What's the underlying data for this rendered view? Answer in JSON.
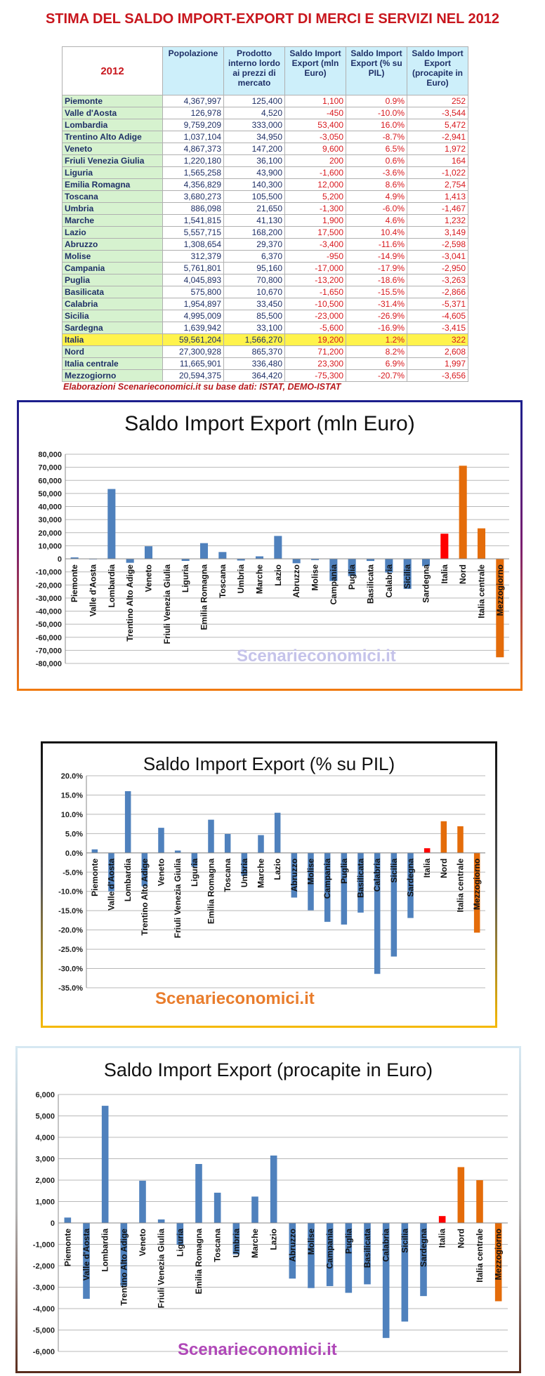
{
  "page": {
    "title": "STIMA DEL SALDO IMPORT-EXPORT DI MERCI E SERVIZI NEL 2012",
    "source_note": "Elaborazioni Scenarieconomici.it su base dati: ISTAT, DEMO-ISTAT"
  },
  "table": {
    "year_label": "2012",
    "headers": [
      "Popolazione",
      "Prodotto interno lordo ai prezzi di mercato",
      "Saldo Import Export (mln Euro)",
      "Saldo Import Export (% su PIL)",
      "Saldo Import Export (procapite in Euro)"
    ],
    "rows": [
      [
        "Piemonte",
        "4,367,997",
        "125,400",
        "1,100",
        "0.9%",
        "252"
      ],
      [
        "Valle d'Aosta",
        "126,978",
        "4,520",
        "-450",
        "-10.0%",
        "-3,544"
      ],
      [
        "Lombardia",
        "9,759,209",
        "333,000",
        "53,400",
        "16.0%",
        "5,472"
      ],
      [
        "Trentino Alto Adige",
        "1,037,104",
        "34,950",
        "-3,050",
        "-8.7%",
        "-2,941"
      ],
      [
        "Veneto",
        "4,867,373",
        "147,200",
        "9,600",
        "6.5%",
        "1,972"
      ],
      [
        "Friuli Venezia Giulia",
        "1,220,180",
        "36,100",
        "200",
        "0.6%",
        "164"
      ],
      [
        "Liguria",
        "1,565,258",
        "43,900",
        "-1,600",
        "-3.6%",
        "-1,022"
      ],
      [
        "Emilia Romagna",
        "4,356,829",
        "140,300",
        "12,000",
        "8.6%",
        "2,754"
      ],
      [
        "Toscana",
        "3,680,273",
        "105,500",
        "5,200",
        "4.9%",
        "1,413"
      ],
      [
        "Umbria",
        "886,098",
        "21,650",
        "-1,300",
        "-6.0%",
        "-1,467"
      ],
      [
        "Marche",
        "1,541,815",
        "41,130",
        "1,900",
        "4.6%",
        "1,232"
      ],
      [
        "Lazio",
        "5,557,715",
        "168,200",
        "17,500",
        "10.4%",
        "3,149"
      ],
      [
        "Abruzzo",
        "1,308,654",
        "29,370",
        "-3,400",
        "-11.6%",
        "-2,598"
      ],
      [
        "Molise",
        "312,379",
        "6,370",
        "-950",
        "-14.9%",
        "-3,041"
      ],
      [
        "Campania",
        "5,761,801",
        "95,160",
        "-17,000",
        "-17.9%",
        "-2,950"
      ],
      [
        "Puglia",
        "4,045,893",
        "70,800",
        "-13,200",
        "-18.6%",
        "-3,263"
      ],
      [
        "Basilicata",
        "575,800",
        "10,670",
        "-1,650",
        "-15.5%",
        "-2,866"
      ],
      [
        "Calabria",
        "1,954,897",
        "33,450",
        "-10,500",
        "-31.4%",
        "-5,371"
      ],
      [
        "Sicilia",
        "4,995,009",
        "85,500",
        "-23,000",
        "-26.9%",
        "-4,605"
      ],
      [
        "Sardegna",
        "1,639,942",
        "33,100",
        "-5,600",
        "-16.9%",
        "-3,415"
      ],
      [
        "Italia",
        "59,561,204",
        "1,566,270",
        "19,200",
        "1.2%",
        "322"
      ],
      [
        "Nord",
        "27,300,928",
        "865,370",
        "71,200",
        "8.2%",
        "2,608"
      ],
      [
        "Italia centrale",
        "11,665,901",
        "336,480",
        "23,300",
        "6.9%",
        "1,997"
      ],
      [
        "Mezzogiorno",
        "20,594,375",
        "364,420",
        "-75,300",
        "-20.7%",
        "-3,656"
      ]
    ]
  },
  "chart_data": [
    {
      "type": "bar",
      "title": "Saldo Import Export (mln Euro)",
      "watermark": "Scenarieconomici.it",
      "categories": [
        "Piemonte",
        "Valle d'Aosta",
        "Lombardia",
        "Trentino Alto Adige",
        "Veneto",
        "Friuli Venezia Giulia",
        "Liguria",
        "Emilia Romagna",
        "Toscana",
        "Umbria",
        "Marche",
        "Lazio",
        "Abruzzo",
        "Molise",
        "Campania",
        "Puglia",
        "Basilicata",
        "Calabria",
        "Sicilia",
        "Sardegna",
        "Italia",
        "Nord",
        "Italia centrale",
        "Mezzogiorno"
      ],
      "values": [
        1100,
        -450,
        53400,
        -3050,
        9600,
        200,
        -1600,
        12000,
        5200,
        -1300,
        1900,
        17500,
        -3400,
        -950,
        -17000,
        -13200,
        -1650,
        -10500,
        -23000,
        -5600,
        19200,
        71200,
        23300,
        -75300
      ],
      "ylim": [
        -80000,
        80000
      ],
      "yticks": [
        80000,
        70000,
        60000,
        50000,
        40000,
        30000,
        20000,
        10000,
        0,
        -10000,
        -20000,
        -30000,
        -40000,
        -50000,
        -60000,
        -70000,
        -80000
      ],
      "ytick_labels": [
        "80,000",
        "70,000",
        "60,000",
        "50,000",
        "40,000",
        "30,000",
        "20,000",
        "10,000",
        "0",
        "-10,000",
        "-20,000",
        "-30,000",
        "-40,000",
        "-50,000",
        "-60,000",
        "-70,000",
        "-80,000"
      ],
      "grid": true,
      "colors": {
        "regions": "#4f81bd",
        "italia": "#ff0000",
        "macro": "#e46c0a"
      }
    },
    {
      "type": "bar",
      "title": "Saldo Import Export (% su PIL)",
      "watermark": "Scenarieconomici.it",
      "categories": [
        "Piemonte",
        "Valle d'Aosta",
        "Lombardia",
        "Trentino Alto Adige",
        "Veneto",
        "Friuli Venezia Giulia",
        "Liguria",
        "Emilia Romagna",
        "Toscana",
        "Umbria",
        "Marche",
        "Lazio",
        "Abruzzo",
        "Molise",
        "Campania",
        "Puglia",
        "Basilicata",
        "Calabria",
        "Sicilia",
        "Sardegna",
        "Italia",
        "Nord",
        "Italia centrale",
        "Mezzogiorno"
      ],
      "values": [
        0.9,
        -10.0,
        16.0,
        -8.7,
        6.5,
        0.6,
        -3.6,
        8.6,
        4.9,
        -6.0,
        4.6,
        10.4,
        -11.6,
        -14.9,
        -17.9,
        -18.6,
        -15.5,
        -31.4,
        -26.9,
        -16.9,
        1.2,
        8.2,
        6.9,
        -20.7
      ],
      "ylim": [
        -35,
        20
      ],
      "yticks": [
        20,
        15,
        10,
        5,
        0,
        -5,
        -10,
        -15,
        -20,
        -25,
        -30,
        -35
      ],
      "ytick_labels": [
        "20.0%",
        "15.0%",
        "10.0%",
        "5.0%",
        "0.0%",
        "-5.0%",
        "-10.0%",
        "-15.0%",
        "-20.0%",
        "-25.0%",
        "-30.0%",
        "-35.0%"
      ],
      "grid": true,
      "colors": {
        "regions": "#4f81bd",
        "italia": "#ff0000",
        "macro": "#e46c0a"
      }
    },
    {
      "type": "bar",
      "title": "Saldo Import Export (procapite in Euro)",
      "watermark": "Scenarieconomici.it",
      "categories": [
        "Piemonte",
        "Valle d'Aosta",
        "Lombardia",
        "Trentino Alto Adige",
        "Veneto",
        "Friuli Venezia Giulia",
        "Liguria",
        "Emilia Romagna",
        "Toscana",
        "Umbria",
        "Marche",
        "Lazio",
        "Abruzzo",
        "Molise",
        "Campania",
        "Puglia",
        "Basilicata",
        "Calabria",
        "Sicilia",
        "Sardegna",
        "Italia",
        "Nord",
        "Italia centrale",
        "Mezzogiorno"
      ],
      "values": [
        252,
        -3544,
        5472,
        -2941,
        1972,
        164,
        -1022,
        2754,
        1413,
        -1467,
        1232,
        3149,
        -2598,
        -3041,
        -2950,
        -3263,
        -2866,
        -5371,
        -4605,
        -3415,
        322,
        2608,
        1997,
        -3656
      ],
      "ylim": [
        -6000,
        6000
      ],
      "yticks": [
        6000,
        5000,
        4000,
        3000,
        2000,
        1000,
        0,
        -1000,
        -2000,
        -3000,
        -4000,
        -5000,
        -6000
      ],
      "ytick_labels": [
        "6,000",
        "5,000",
        "4,000",
        "3,000",
        "2,000",
        "1,000",
        "0",
        "-1,000",
        "-2,000",
        "-3,000",
        "-4,000",
        "-5,000",
        "-6,000"
      ],
      "grid": true,
      "colors": {
        "regions": "#4f81bd",
        "italia": "#ff0000",
        "macro": "#e46c0a"
      }
    }
  ]
}
